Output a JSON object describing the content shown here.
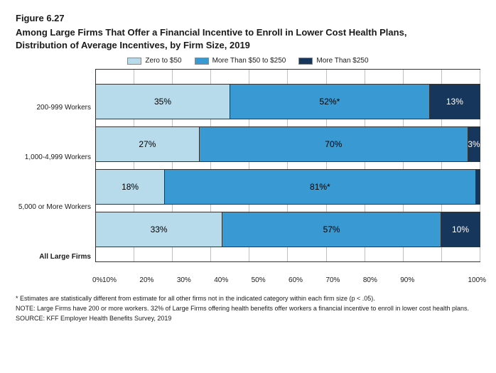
{
  "figure_num": "Figure 6.27",
  "title_l1": "Among Large Firms That Offer a Financial Incentive to Enroll in Lower Cost Health Plans,",
  "title_l2": "Distribution of Average Incentives, by Firm Size, 2019",
  "legend": [
    {
      "label": "Zero to $50",
      "color": "#b8dbeb"
    },
    {
      "label": "More Than $50 to $250",
      "color": "#3999d2"
    },
    {
      "label": "More Than $250",
      "color": "#17365b"
    }
  ],
  "categories": [
    {
      "name": "200-999 Workers",
      "bold": false,
      "values": [
        35,
        52,
        13
      ],
      "labels": [
        "35%",
        "52%*",
        "13%"
      ]
    },
    {
      "name": "1,000-4,999 Workers",
      "bold": false,
      "values": [
        27,
        70,
        3
      ],
      "labels": [
        "27%",
        "70%",
        "3%"
      ]
    },
    {
      "name": "5,000 or More Workers",
      "bold": false,
      "values": [
        18,
        81,
        1
      ],
      "labels": [
        "18%",
        "81%*",
        ""
      ]
    },
    {
      "name": "All Large Firms",
      "bold": true,
      "values": [
        33,
        57,
        10
      ],
      "labels": [
        "33%",
        "57%",
        "10%"
      ]
    }
  ],
  "xticks": [
    "0%",
    "10%",
    "20%",
    "30%",
    "40%",
    "50%",
    "60%",
    "70%",
    "80%",
    "90%",
    "100%"
  ],
  "foot1": "* Estimates are statistically different from estimate for all other firms not in the indicated category within each firm size (p < .05).",
  "foot2": "NOTE: Large Firms have 200 or more workers.  32% of Large Firms offering health benefits offer workers a financial incentive to enroll in lower cost health plans.",
  "foot3": "SOURCE: KFF Employer Health Benefits Survey, 2019",
  "style": {
    "label_colors": [
      "#000000",
      "#000000",
      "#ffffff"
    ]
  }
}
